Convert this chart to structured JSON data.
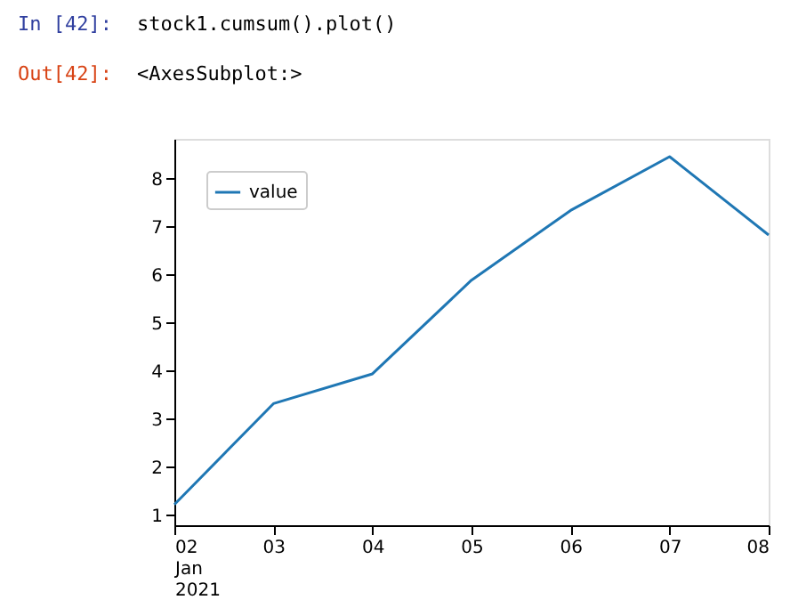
{
  "chart_data": {
    "type": "line",
    "x": [
      "2021-01-02",
      "2021-01-03",
      "2021-01-04",
      "2021-01-05",
      "2021-01-06",
      "2021-01-07",
      "2021-01-08"
    ],
    "series": [
      {
        "name": "value",
        "color": "#1f77b4",
        "values": [
          1.22,
          3.32,
          3.94,
          5.89,
          7.34,
          8.46,
          6.83
        ]
      }
    ],
    "xlim": [
      "2021-01-02",
      "2021-01-08"
    ],
    "xticks": [
      {
        "value": "2021-01-02",
        "label": "02\nJan\n2021"
      },
      {
        "value": "2021-01-03",
        "label": "03"
      },
      {
        "value": "2021-01-04",
        "label": "04"
      },
      {
        "value": "2021-01-05",
        "label": "05"
      },
      {
        "value": "2021-01-06",
        "label": "06"
      },
      {
        "value": "2021-01-07",
        "label": "07"
      },
      {
        "value": "2021-01-08",
        "label": "08"
      }
    ],
    "ylim": [
      0.79,
      8.83
    ],
    "yticks": [
      1,
      2,
      3,
      4,
      5,
      6,
      7,
      8
    ],
    "grid": false,
    "legend": "top left",
    "marker": "none",
    "line_style": "solid",
    "annotations": [
      "In [42]:",
      "stock1.cumsum().plot()",
      "Out[42]:",
      "<AxesSubplot:>"
    ]
  }
}
